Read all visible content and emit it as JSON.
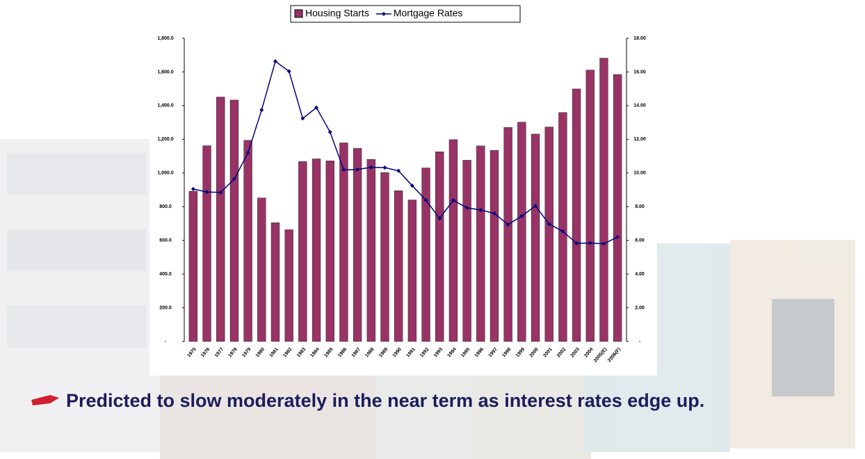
{
  "chart_data": {
    "type": "bar",
    "categories": [
      "1975",
      "1976",
      "1977",
      "1978",
      "1979",
      "1980",
      "1981",
      "1982",
      "1983",
      "1984",
      "1985",
      "1986",
      "1987",
      "1988",
      "1989",
      "1990",
      "1991",
      "1992",
      "1993",
      "1994",
      "1995",
      "1996",
      "1997",
      "1998",
      "1999",
      "2000",
      "2001",
      "2002",
      "2003",
      "2004",
      "2005(E)",
      "2006(F)"
    ],
    "series": [
      {
        "name": "Housing Starts",
        "color": "#993366",
        "type": "bar",
        "values": [
          892,
          1162,
          1451,
          1433,
          1194,
          852,
          705,
          663,
          1068,
          1084,
          1072,
          1179,
          1146,
          1081,
          1003,
          895,
          840,
          1030,
          1126,
          1198,
          1076,
          1161,
          1134,
          1271,
          1302,
          1231,
          1273,
          1359,
          1499,
          1611,
          1682,
          1585
        ]
      },
      {
        "name": "Mortgage Rates",
        "color": "#000080",
        "type": "line",
        "axis": "y2",
        "values": [
          9.05,
          8.87,
          8.85,
          9.64,
          11.2,
          13.74,
          16.63,
          16.04,
          13.24,
          13.88,
          12.43,
          10.19,
          10.21,
          10.34,
          10.32,
          10.13,
          9.25,
          8.39,
          7.31,
          8.38,
          7.93,
          7.81,
          7.6,
          6.94,
          7.44,
          8.05,
          6.97,
          6.54,
          5.83,
          5.84,
          5.8,
          6.2
        ]
      }
    ],
    "ylim": [
      0,
      1800
    ],
    "yticks": [
      {
        "value": 0,
        "label": "-"
      },
      {
        "value": 200,
        "label": "200.0"
      },
      {
        "value": 400,
        "label": "400.0"
      },
      {
        "value": 600,
        "label": "600.0"
      },
      {
        "value": 800,
        "label": "800.0"
      },
      {
        "value": 1000,
        "label": "1,000.0"
      },
      {
        "value": 1200,
        "label": "1,200.0"
      },
      {
        "value": 1400,
        "label": "1,400.0"
      },
      {
        "value": 1600,
        "label": "1,600.0"
      },
      {
        "value": 1800,
        "label": "1,800.0"
      }
    ],
    "y2lim": [
      0,
      18
    ],
    "y2ticks": [
      {
        "value": 0,
        "label": "-"
      },
      {
        "value": 2,
        "label": "2.00"
      },
      {
        "value": 4,
        "label": "4.00"
      },
      {
        "value": 6,
        "label": "6.00"
      },
      {
        "value": 8,
        "label": "8.00"
      },
      {
        "value": 10,
        "label": "10.00"
      },
      {
        "value": 12,
        "label": "12.00"
      },
      {
        "value": 14,
        "label": "14.00"
      },
      {
        "value": 16,
        "label": "16.00"
      },
      {
        "value": 18,
        "label": "18.00"
      }
    ],
    "legend": "top"
  },
  "bullet": "Predicted to slow moderately in the near term as interest rates edge up."
}
